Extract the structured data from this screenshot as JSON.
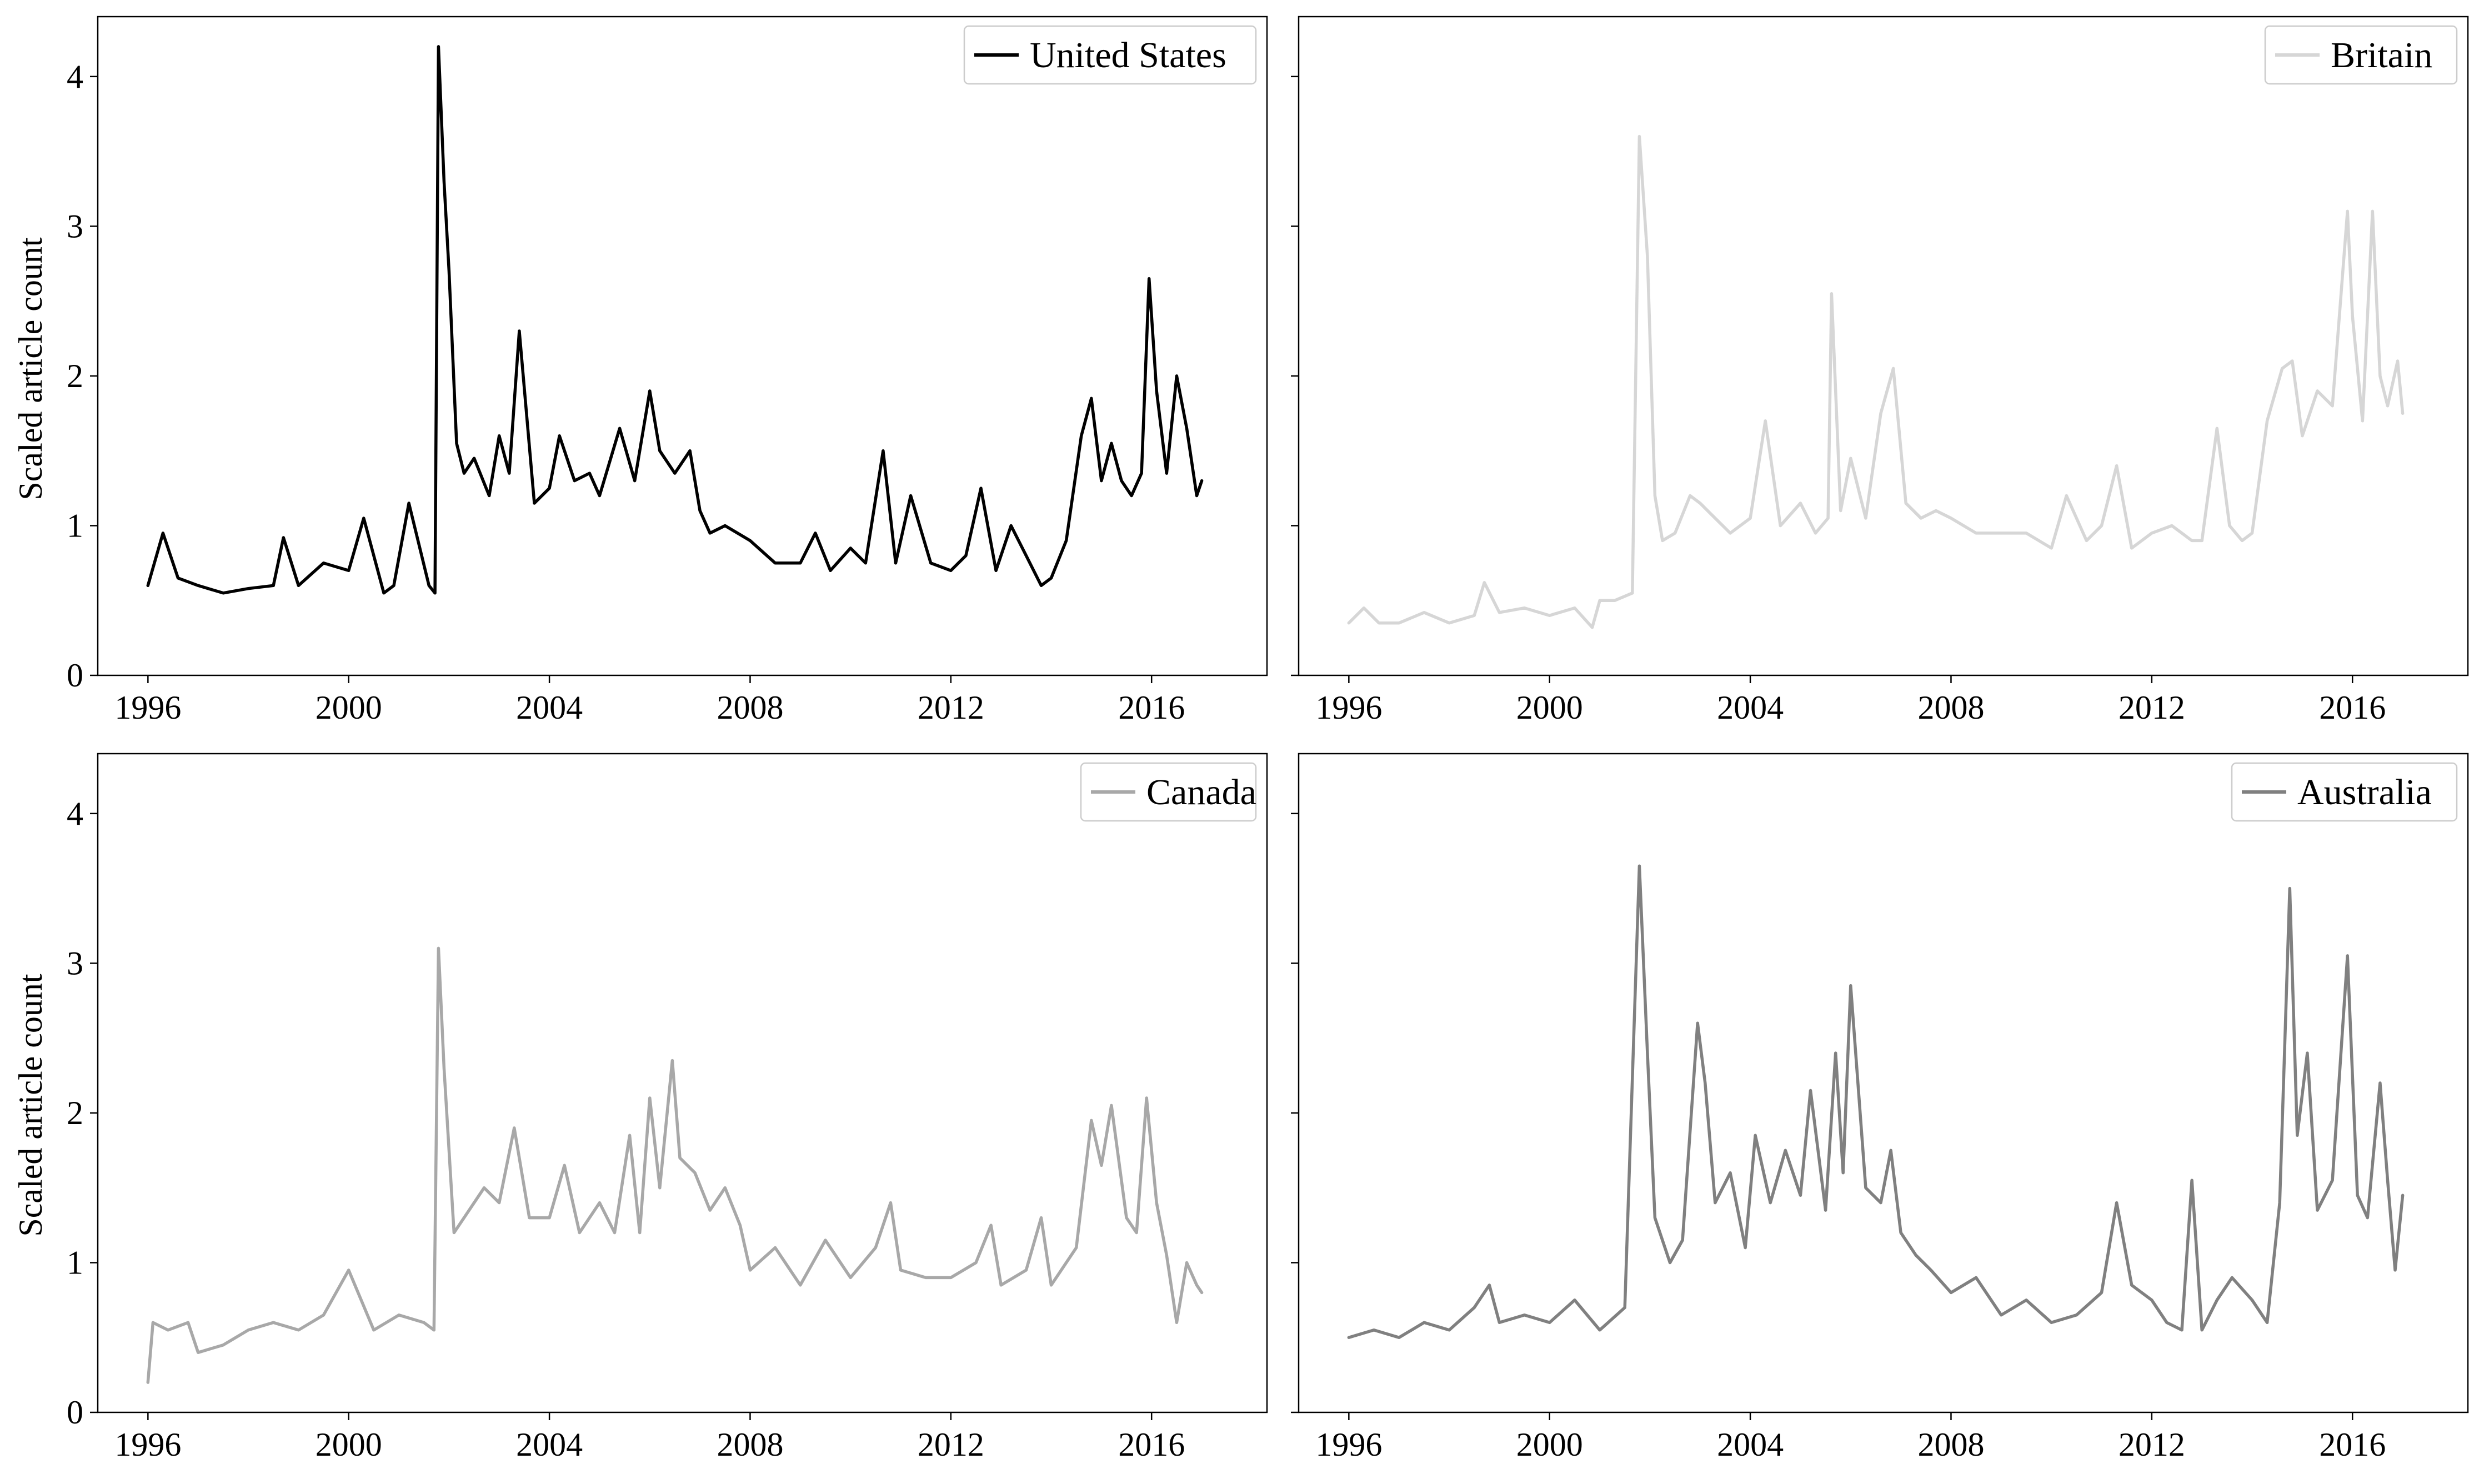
{
  "figure": {
    "shared_ylabel": "Scaled article count",
    "x_ticks": [
      1996,
      2000,
      2004,
      2008,
      2012,
      2016
    ],
    "y_ticks": [
      0,
      1,
      2,
      3,
      4
    ]
  },
  "chart_data": [
    {
      "type": "line",
      "panel": "top-left",
      "legend": "top-right",
      "grid": false,
      "ylabel": "Scaled article count",
      "xlim": [
        1995.0,
        2018.3
      ],
      "ylim": [
        0,
        4.4
      ],
      "series": [
        {
          "name": "United States",
          "color": "#000000",
          "x": [
            1996.0,
            1996.3,
            1996.6,
            1997.0,
            1997.5,
            1998.0,
            1998.5,
            1998.7,
            1999.0,
            1999.5,
            2000.0,
            2000.3,
            2000.7,
            2000.9,
            2001.2,
            2001.6,
            2001.72,
            2001.79,
            2001.9,
            2002.0,
            2002.15,
            2002.3,
            2002.5,
            2002.8,
            2003.0,
            2003.2,
            2003.4,
            2003.7,
            2004.0,
            2004.2,
            2004.5,
            2004.8,
            2005.0,
            2005.4,
            2005.7,
            2006.0,
            2006.2,
            2006.5,
            2006.8,
            2007.0,
            2007.2,
            2007.5,
            2008.0,
            2008.5,
            2009.0,
            2009.3,
            2009.6,
            2010.0,
            2010.3,
            2010.65,
            2010.9,
            2011.2,
            2011.6,
            2012.0,
            2012.3,
            2012.6,
            2012.9,
            2013.2,
            2013.5,
            2013.8,
            2014.0,
            2014.3,
            2014.6,
            2014.8,
            2015.0,
            2015.2,
            2015.4,
            2015.6,
            2015.8,
            2015.95,
            2016.1,
            2016.3,
            2016.5,
            2016.7,
            2016.9,
            2017.0
          ],
          "values": [
            0.6,
            0.95,
            0.65,
            0.6,
            0.55,
            0.58,
            0.6,
            0.92,
            0.6,
            0.75,
            0.7,
            1.05,
            0.55,
            0.6,
            1.15,
            0.6,
            0.55,
            4.2,
            3.3,
            2.7,
            1.55,
            1.35,
            1.45,
            1.2,
            1.6,
            1.35,
            2.3,
            1.15,
            1.25,
            1.6,
            1.3,
            1.35,
            1.2,
            1.65,
            1.3,
            1.9,
            1.5,
            1.35,
            1.5,
            1.1,
            0.95,
            1.0,
            0.9,
            0.75,
            0.75,
            0.95,
            0.7,
            0.85,
            0.75,
            1.5,
            0.75,
            1.2,
            0.75,
            0.7,
            0.8,
            1.25,
            0.7,
            1.0,
            0.8,
            0.6,
            0.65,
            0.9,
            1.6,
            1.85,
            1.3,
            1.55,
            1.3,
            1.2,
            1.35,
            2.65,
            1.9,
            1.35,
            2.0,
            1.65,
            1.2,
            1.3
          ]
        }
      ]
    },
    {
      "type": "line",
      "panel": "top-right",
      "legend": "top-right",
      "grid": false,
      "ylabel": "",
      "xlim": [
        1995.0,
        2018.3
      ],
      "ylim": [
        0,
        4.4
      ],
      "series": [
        {
          "name": "Britain",
          "color": "#d6d6d6",
          "x": [
            1996.0,
            1996.3,
            1996.6,
            1997.0,
            1997.5,
            1998.0,
            1998.5,
            1998.7,
            1999.0,
            1999.5,
            2000.0,
            2000.5,
            2000.85,
            2001.0,
            2001.3,
            2001.65,
            2001.79,
            2001.95,
            2002.1,
            2002.25,
            2002.5,
            2002.8,
            2003.0,
            2003.3,
            2003.6,
            2004.0,
            2004.3,
            2004.6,
            2005.0,
            2005.3,
            2005.55,
            2005.62,
            2005.8,
            2006.0,
            2006.3,
            2006.6,
            2006.85,
            2007.1,
            2007.4,
            2007.7,
            2008.0,
            2008.5,
            2009.0,
            2009.5,
            2010.0,
            2010.3,
            2010.7,
            2011.0,
            2011.3,
            2011.6,
            2012.0,
            2012.4,
            2012.8,
            2013.0,
            2013.3,
            2013.55,
            2013.8,
            2014.0,
            2014.3,
            2014.6,
            2014.8,
            2015.0,
            2015.3,
            2015.6,
            2015.9,
            2016.0,
            2016.2,
            2016.4,
            2016.55,
            2016.7,
            2016.9,
            2017.0
          ],
          "values": [
            0.35,
            0.45,
            0.35,
            0.35,
            0.42,
            0.35,
            0.4,
            0.62,
            0.42,
            0.45,
            0.4,
            0.45,
            0.32,
            0.5,
            0.5,
            0.55,
            3.6,
            2.8,
            1.2,
            0.9,
            0.95,
            1.2,
            1.15,
            1.05,
            0.95,
            1.05,
            1.7,
            1.0,
            1.15,
            0.95,
            1.05,
            2.55,
            1.1,
            1.45,
            1.05,
            1.75,
            2.05,
            1.15,
            1.05,
            1.1,
            1.05,
            0.95,
            0.95,
            0.95,
            0.85,
            1.2,
            0.9,
            1.0,
            1.4,
            0.85,
            0.95,
            1.0,
            0.9,
            0.9,
            1.65,
            1.0,
            0.9,
            0.95,
            1.7,
            2.05,
            2.1,
            1.6,
            1.9,
            1.8,
            3.1,
            2.4,
            1.7,
            3.1,
            2.0,
            1.8,
            2.1,
            1.75
          ]
        }
      ]
    },
    {
      "type": "line",
      "panel": "bottom-left",
      "legend": "top-right",
      "grid": false,
      "ylabel": "Scaled article count",
      "xlim": [
        1995.0,
        2018.3
      ],
      "ylim": [
        0,
        4.4
      ],
      "series": [
        {
          "name": "Canada",
          "color": "#a8a8a8",
          "x": [
            1996.0,
            1996.1,
            1996.4,
            1996.8,
            1997.0,
            1997.5,
            1998.0,
            1998.5,
            1999.0,
            1999.5,
            2000.0,
            2000.5,
            2001.0,
            2001.5,
            2001.7,
            2001.79,
            2001.9,
            2002.1,
            2002.4,
            2002.7,
            2003.0,
            2003.3,
            2003.6,
            2004.0,
            2004.3,
            2004.6,
            2005.0,
            2005.3,
            2005.6,
            2005.8,
            2006.0,
            2006.2,
            2006.45,
            2006.6,
            2006.9,
            2007.2,
            2007.5,
            2007.8,
            2008.0,
            2008.5,
            2009.0,
            2009.5,
            2010.0,
            2010.5,
            2010.8,
            2011.0,
            2011.5,
            2012.0,
            2012.5,
            2012.8,
            2013.0,
            2013.5,
            2013.8,
            2014.0,
            2014.5,
            2014.8,
            2015.0,
            2015.2,
            2015.5,
            2015.7,
            2015.9,
            2016.1,
            2016.3,
            2016.5,
            2016.7,
            2016.9,
            2017.0
          ],
          "values": [
            0.2,
            0.6,
            0.55,
            0.6,
            0.4,
            0.45,
            0.55,
            0.6,
            0.55,
            0.65,
            0.95,
            0.55,
            0.65,
            0.6,
            0.55,
            3.1,
            2.3,
            1.2,
            1.35,
            1.5,
            1.4,
            1.9,
            1.3,
            1.3,
            1.65,
            1.2,
            1.4,
            1.2,
            1.85,
            1.2,
            2.1,
            1.5,
            2.35,
            1.7,
            1.6,
            1.35,
            1.5,
            1.25,
            0.95,
            1.1,
            0.85,
            1.15,
            0.9,
            1.1,
            1.4,
            0.95,
            0.9,
            0.9,
            1.0,
            1.25,
            0.85,
            0.95,
            1.3,
            0.85,
            1.1,
            1.95,
            1.65,
            2.05,
            1.3,
            1.2,
            2.1,
            1.4,
            1.05,
            0.6,
            1.0,
            0.85,
            0.8
          ]
        }
      ]
    },
    {
      "type": "line",
      "panel": "bottom-right",
      "legend": "top-right",
      "grid": false,
      "ylabel": "",
      "xlim": [
        1995.0,
        2018.3
      ],
      "ylim": [
        0,
        4.4
      ],
      "series": [
        {
          "name": "Australia",
          "color": "#808080",
          "x": [
            1996.0,
            1996.5,
            1997.0,
            1997.5,
            1998.0,
            1998.5,
            1998.8,
            1999.0,
            1999.5,
            2000.0,
            2000.5,
            2001.0,
            2001.5,
            2001.79,
            2001.95,
            2002.1,
            2002.4,
            2002.65,
            2002.95,
            2003.1,
            2003.3,
            2003.6,
            2003.9,
            2004.1,
            2004.4,
            2004.7,
            2005.0,
            2005.2,
            2005.5,
            2005.7,
            2005.85,
            2006.0,
            2006.3,
            2006.6,
            2006.8,
            2007.0,
            2007.3,
            2007.6,
            2008.0,
            2008.5,
            2009.0,
            2009.5,
            2010.0,
            2010.5,
            2011.0,
            2011.3,
            2011.6,
            2012.0,
            2012.3,
            2012.6,
            2012.8,
            2013.0,
            2013.3,
            2013.6,
            2014.0,
            2014.3,
            2014.55,
            2014.75,
            2014.9,
            2015.1,
            2015.3,
            2015.6,
            2015.9,
            2016.1,
            2016.3,
            2016.55,
            2016.7,
            2016.85,
            2017.0
          ],
          "values": [
            0.5,
            0.55,
            0.5,
            0.6,
            0.55,
            0.7,
            0.85,
            0.6,
            0.65,
            0.6,
            0.75,
            0.55,
            0.7,
            3.65,
            2.4,
            1.3,
            1.0,
            1.15,
            2.6,
            2.2,
            1.4,
            1.6,
            1.1,
            1.85,
            1.4,
            1.75,
            1.45,
            2.15,
            1.35,
            2.4,
            1.6,
            2.85,
            1.5,
            1.4,
            1.75,
            1.2,
            1.05,
            0.95,
            0.8,
            0.9,
            0.65,
            0.75,
            0.6,
            0.65,
            0.8,
            1.4,
            0.85,
            0.75,
            0.6,
            0.55,
            1.55,
            0.55,
            0.75,
            0.9,
            0.75,
            0.6,
            1.4,
            3.5,
            1.85,
            2.4,
            1.35,
            1.55,
            3.05,
            1.45,
            1.3,
            2.2,
            1.55,
            0.95,
            1.45
          ]
        }
      ]
    }
  ]
}
